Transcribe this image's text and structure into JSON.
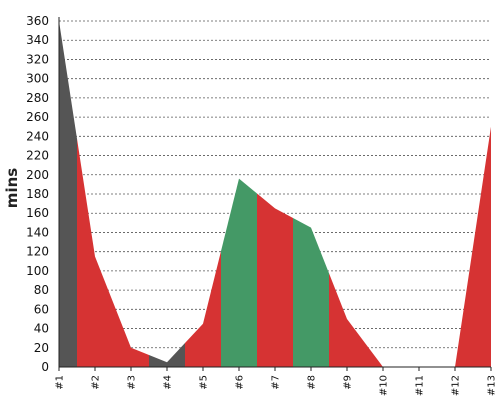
{
  "chart_data": {
    "type": "area",
    "title": "",
    "xlabel": "",
    "ylabel": "mins",
    "ylim": [
      0,
      360
    ],
    "ytick_step": 20,
    "grid": true,
    "legend": "none",
    "categories": [
      "#1",
      "#2",
      "#3",
      "#4",
      "#5",
      "#6",
      "#7",
      "#8",
      "#9",
      "#10",
      "#11",
      "#12",
      "#13"
    ],
    "values": [
      360,
      115,
      20,
      5,
      45,
      196,
      165,
      145,
      50,
      0,
      0,
      0,
      250
    ],
    "band_colors": [
      "#555555",
      "#d63333",
      "#d63333",
      "#555555",
      "#d63333",
      "#449966",
      "#d63333",
      "#449966",
      "#d63333",
      "#d63333",
      "#d63333",
      "#d63333"
    ]
  }
}
